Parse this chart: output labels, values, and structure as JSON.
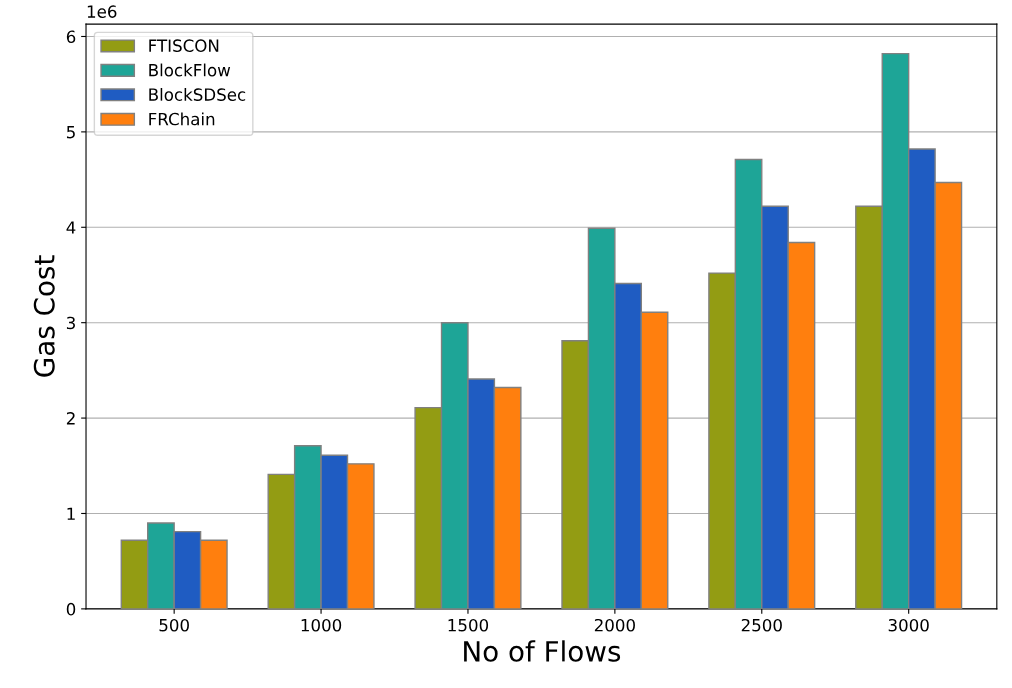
{
  "chart_data": {
    "type": "bar",
    "xlabel": "No of Flows",
    "ylabel": "Gas Cost",
    "categories": [
      "500",
      "1000",
      "1500",
      "2000",
      "2500",
      "3000"
    ],
    "series": [
      {
        "name": "FTISCON",
        "color": "#939c13",
        "values": [
          0.72,
          1.41,
          2.11,
          2.81,
          3.52,
          4.22
        ]
      },
      {
        "name": "BlockFlow",
        "color": "#1ea597",
        "values": [
          0.9,
          1.71,
          3.0,
          3.99,
          4.71,
          5.82
        ]
      },
      {
        "name": "BlockSDSec",
        "color": "#1f5cc2",
        "values": [
          0.81,
          1.61,
          2.41,
          3.41,
          4.22,
          4.82
        ]
      },
      {
        "name": "FRChain",
        "color": "#ff7f0e",
        "values": [
          0.72,
          1.52,
          2.32,
          3.11,
          3.84,
          4.47
        ]
      }
    ],
    "ylim": [
      0,
      6.13
    ],
    "yticks": [
      0,
      1,
      2,
      3,
      4,
      5,
      6
    ],
    "annotations": [
      "1e6"
    ],
    "grid": "y",
    "legend": "top left"
  }
}
